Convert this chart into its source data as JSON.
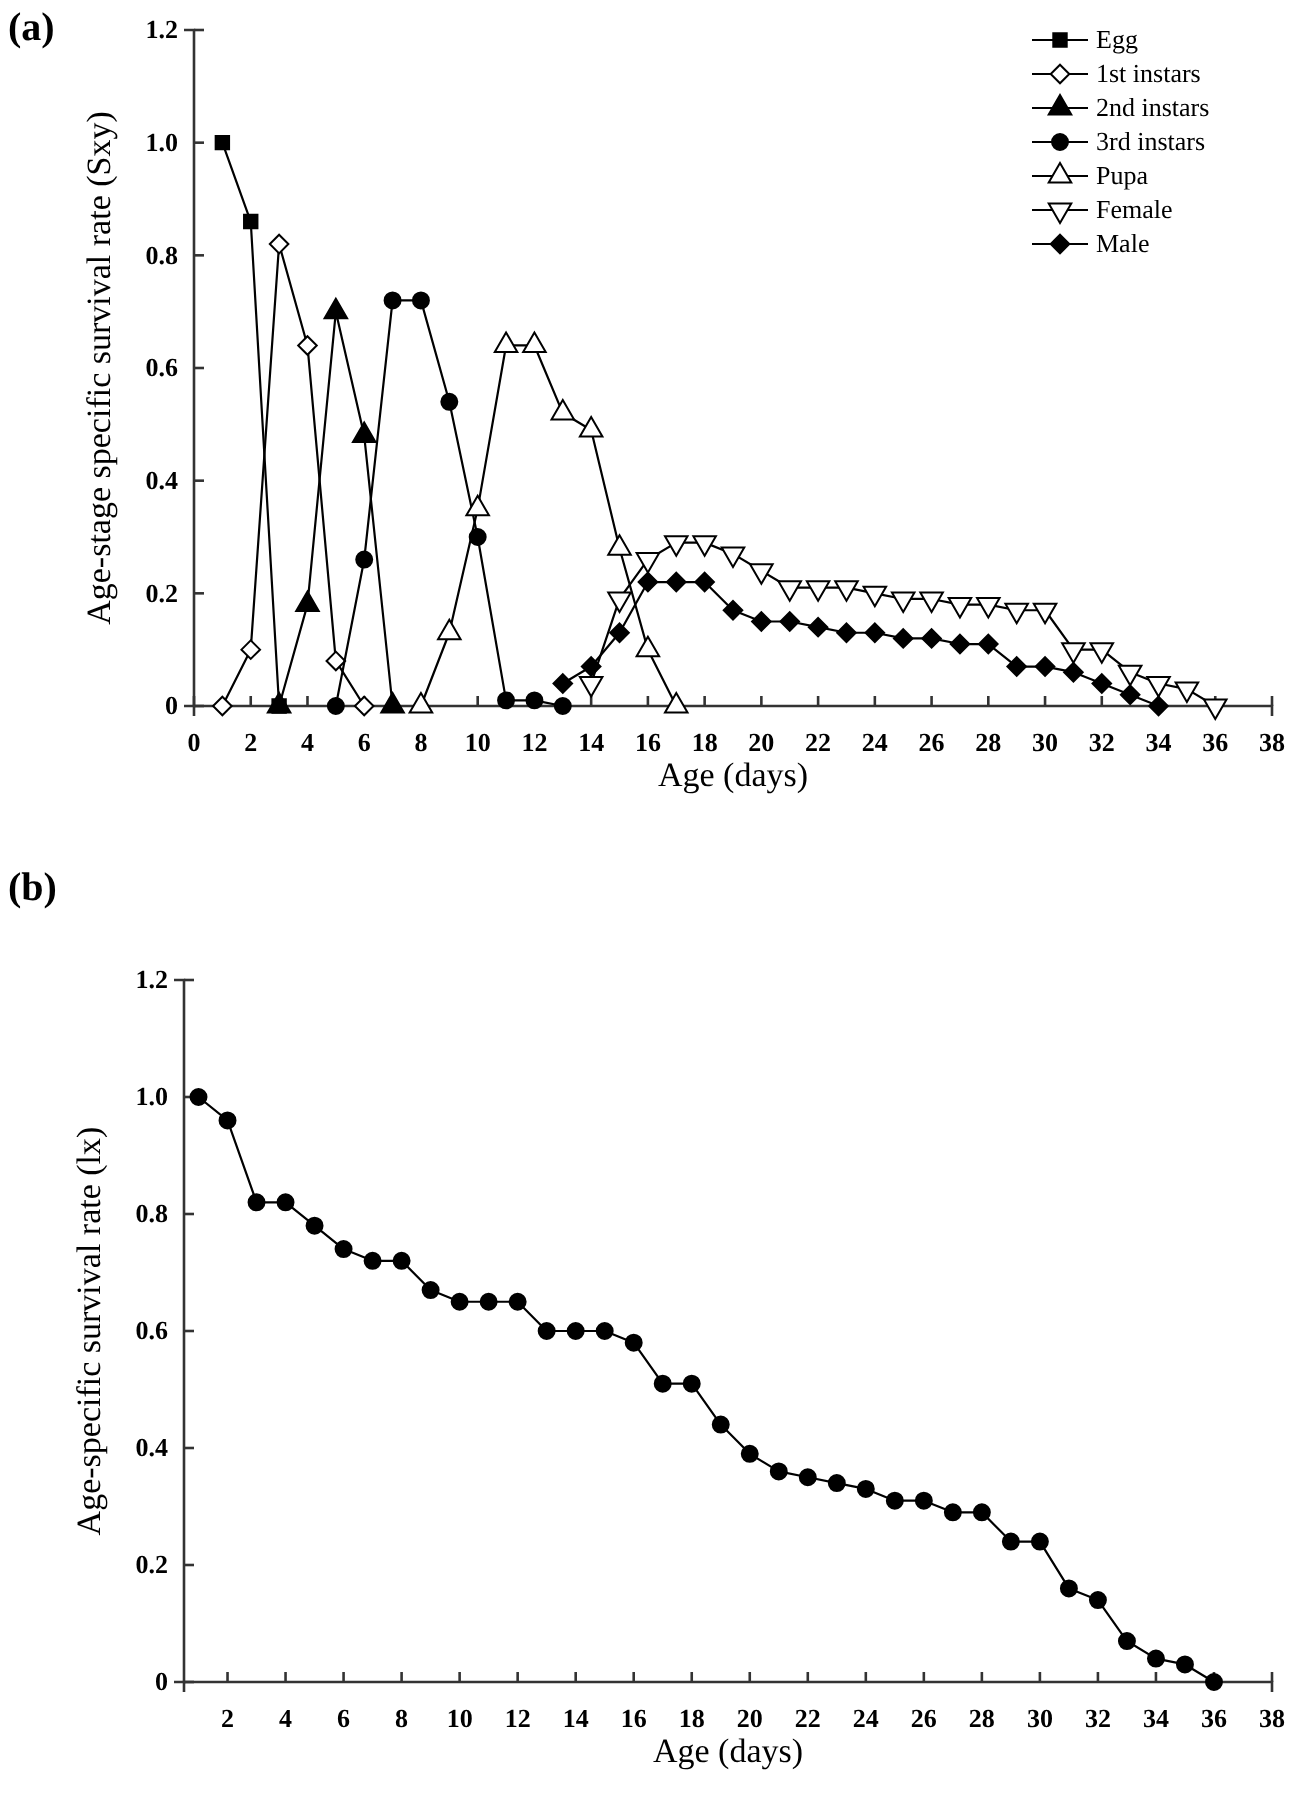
{
  "chart_data": [
    {
      "type": "line",
      "xlabel": "Age (days)",
      "ylabel": "Age-stage specific survival rate (Sxy)",
      "annotations": [
        "(a)"
      ],
      "xlim": [
        0,
        38
      ],
      "xticks": [
        0,
        2,
        4,
        6,
        8,
        10,
        12,
        14,
        16,
        18,
        20,
        22,
        24,
        26,
        28,
        30,
        32,
        34,
        36,
        38
      ],
      "ylim": [
        0,
        1.2
      ],
      "yticks": [
        0,
        0.2,
        0.4,
        0.6,
        0.8,
        {
          "value": 1,
          "label": "1.0"
        },
        1.2
      ],
      "legend": "top right",
      "grid": false,
      "series": [
        {
          "name": "Egg",
          "color": "#000000",
          "marker": "square",
          "x": [
            1,
            2,
            3
          ],
          "values": [
            1,
            0.86,
            0
          ]
        },
        {
          "name": "1st instars",
          "color": "#000000",
          "marker": "diamond-open",
          "x": [
            1,
            2,
            3,
            4,
            5,
            6
          ],
          "values": [
            0,
            0.1,
            0.82,
            0.64,
            0.08,
            0
          ]
        },
        {
          "name": "2nd instars",
          "color": "#000000",
          "marker": "triangle",
          "x": [
            3,
            4,
            5,
            6,
            7
          ],
          "values": [
            0,
            0.18,
            0.7,
            0.48,
            0
          ]
        },
        {
          "name": "3rd instars",
          "color": "#000000",
          "marker": "circle",
          "x": [
            5,
            6,
            7,
            8,
            9,
            10,
            11,
            12,
            13
          ],
          "values": [
            0,
            0.26,
            0.72,
            0.72,
            0.54,
            0.3,
            0.01,
            0.01,
            0
          ]
        },
        {
          "name": "Pupa",
          "color": "#000000",
          "marker": "triangle-open",
          "x": [
            8,
            9,
            10,
            11,
            12,
            13,
            14,
            15,
            16,
            17
          ],
          "values": [
            0,
            0.13,
            0.35,
            0.64,
            0.64,
            0.52,
            0.49,
            0.28,
            0.1,
            0
          ]
        },
        {
          "name": "Female",
          "color": "#000000",
          "marker": "triangle-down-open",
          "x": [
            14,
            15,
            16,
            17,
            18,
            19,
            20,
            21,
            22,
            23,
            24,
            25,
            26,
            27,
            28,
            29,
            30,
            31,
            32,
            33,
            34,
            35,
            36
          ],
          "values": [
            0.04,
            0.19,
            0.26,
            0.29,
            0.29,
            0.27,
            0.24,
            0.21,
            0.21,
            0.21,
            0.2,
            0.19,
            0.19,
            0.18,
            0.18,
            0.17,
            0.17,
            0.1,
            0.1,
            0.06,
            0.04,
            0.03,
            0
          ]
        },
        {
          "name": "Male",
          "color": "#000000",
          "marker": "diamond",
          "x": [
            13,
            14,
            15,
            16,
            17,
            18,
            19,
            20,
            21,
            22,
            23,
            24,
            25,
            26,
            27,
            28,
            29,
            30,
            31,
            32,
            33,
            34
          ],
          "values": [
            0.04,
            0.07,
            0.13,
            0.22,
            0.22,
            0.22,
            0.17,
            0.15,
            0.15,
            0.14,
            0.13,
            0.13,
            0.12,
            0.12,
            0.11,
            0.11,
            0.07,
            0.07,
            0.06,
            0.04,
            0.02,
            0
          ]
        }
      ]
    },
    {
      "type": "line",
      "xlabel": "Age (days)",
      "ylabel": "Age-specific survival rate (lx)",
      "annotations": [
        "(b)"
      ],
      "xlim": [
        0.5,
        38
      ],
      "xticks": [
        2,
        4,
        6,
        8,
        10,
        12,
        14,
        16,
        18,
        20,
        22,
        24,
        26,
        28,
        30,
        32,
        34,
        36,
        38
      ],
      "ylim": [
        0,
        1.2
      ],
      "yticks": [
        0,
        0.2,
        0.4,
        0.6,
        0.8,
        {
          "value": 1,
          "label": "1.0"
        },
        1.2
      ],
      "grid": false,
      "marker": "circle",
      "series": [
        {
          "color": "#000000",
          "x": [
            1,
            2,
            3,
            4,
            5,
            6,
            7,
            8,
            9,
            10,
            11,
            12,
            13,
            14,
            15,
            16,
            17,
            18,
            19,
            20,
            21,
            22,
            23,
            24,
            25,
            26,
            27,
            28,
            29,
            30,
            31,
            32,
            33,
            34,
            35,
            36
          ],
          "values": [
            1,
            0.96,
            0.82,
            0.82,
            0.78,
            0.74,
            0.72,
            0.72,
            0.67,
            0.65,
            0.65,
            0.65,
            0.6,
            0.6,
            0.6,
            0.58,
            0.51,
            0.51,
            0.44,
            0.39,
            0.36,
            0.35,
            0.34,
            0.33,
            0.31,
            0.31,
            0.29,
            0.29,
            0.24,
            0.24,
            0.16,
            0.14,
            0.07,
            0.04,
            0.03,
            0
          ]
        }
      ]
    }
  ]
}
